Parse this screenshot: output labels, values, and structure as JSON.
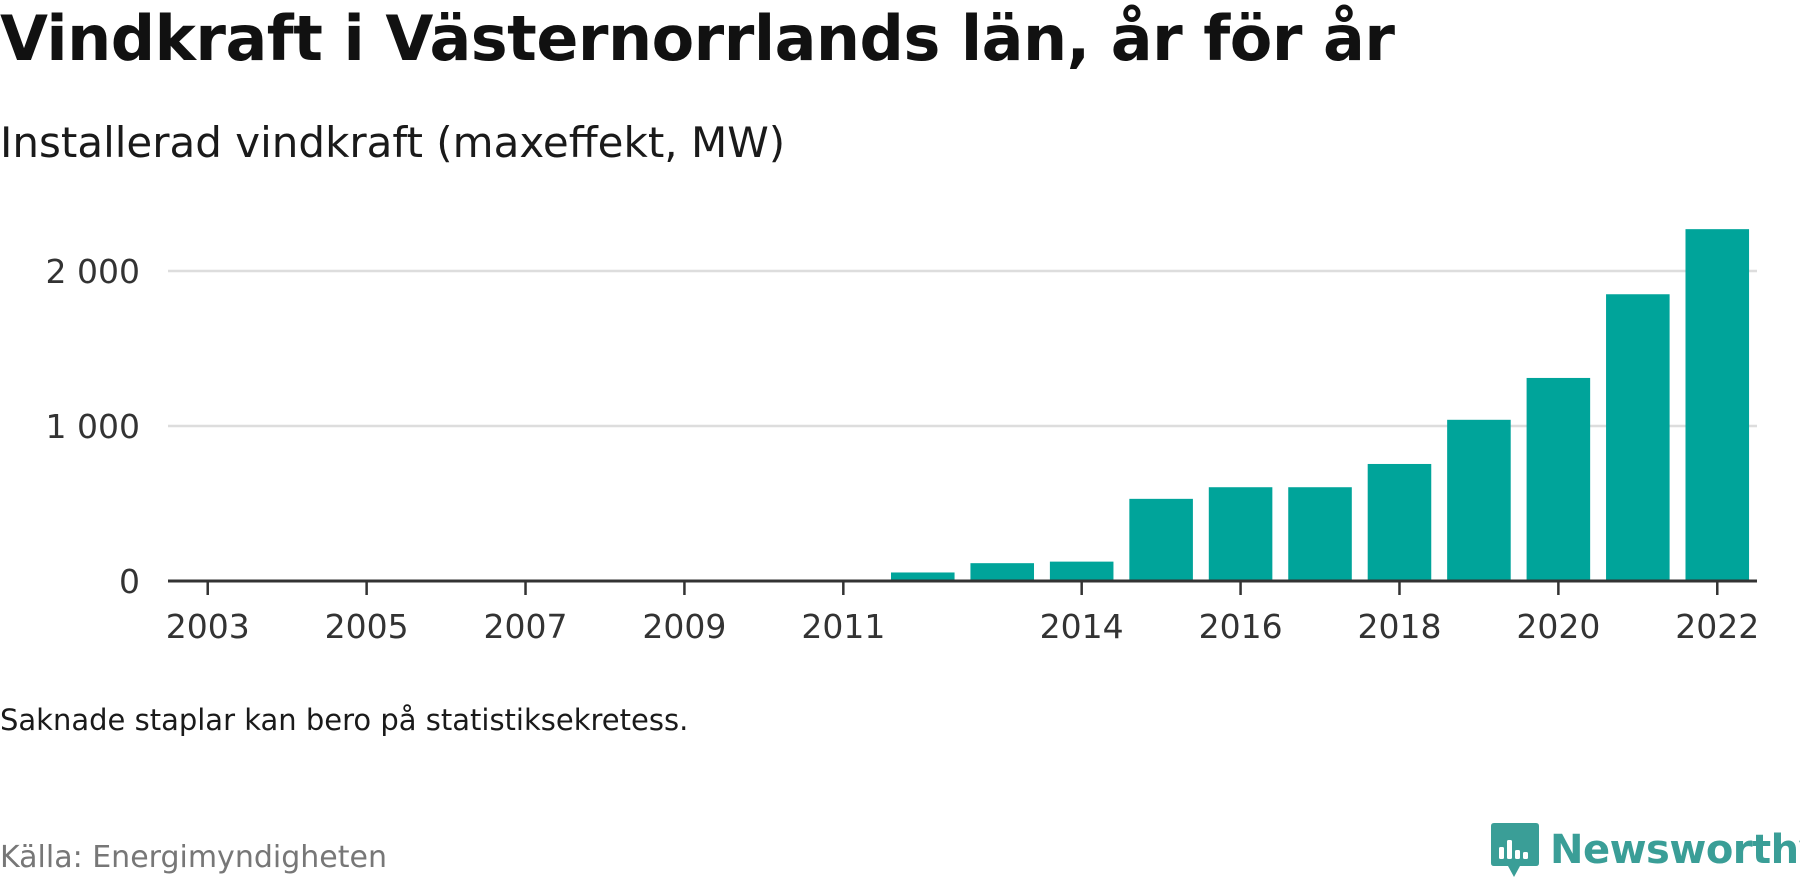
{
  "title": "Vindkraft i Västernorrlands län, år för år",
  "subtitle": "Installerad vindkraft (maxeffekt, MW)",
  "note": "Saknade staplar kan bero på statistiksekretess.",
  "source": "Källa: Energimyndigheten",
  "brand": {
    "name": "Newsworthy",
    "icon": "newsworthy-logo-icon",
    "color": "#3a9e97"
  },
  "colors": {
    "bar": "#00a49a",
    "grid": "#dddddd",
    "axis": "#333333"
  },
  "chart_data": {
    "type": "bar",
    "categories": [
      "2003",
      "2004",
      "2005",
      "2006",
      "2007",
      "2008",
      "2009",
      "2010",
      "2011",
      "2012",
      "2013",
      "2014",
      "2015",
      "2016",
      "2017",
      "2018",
      "2019",
      "2020",
      "2021",
      "2022"
    ],
    "values": [
      0,
      0,
      0,
      0,
      0,
      0,
      0,
      0,
      0,
      55,
      115,
      125,
      530,
      605,
      605,
      755,
      1040,
      1310,
      1850,
      2270
    ],
    "x_tick_labels": [
      "2003",
      "2005",
      "2007",
      "2009",
      "2011",
      "2014",
      "2016",
      "2018",
      "2020",
      "2022"
    ],
    "y_ticks": [
      0,
      1000,
      2000
    ],
    "y_tick_labels": [
      "0",
      "1 000",
      "2 000"
    ],
    "ylim": [
      0,
      2400
    ],
    "grid": true,
    "legend": "none"
  }
}
